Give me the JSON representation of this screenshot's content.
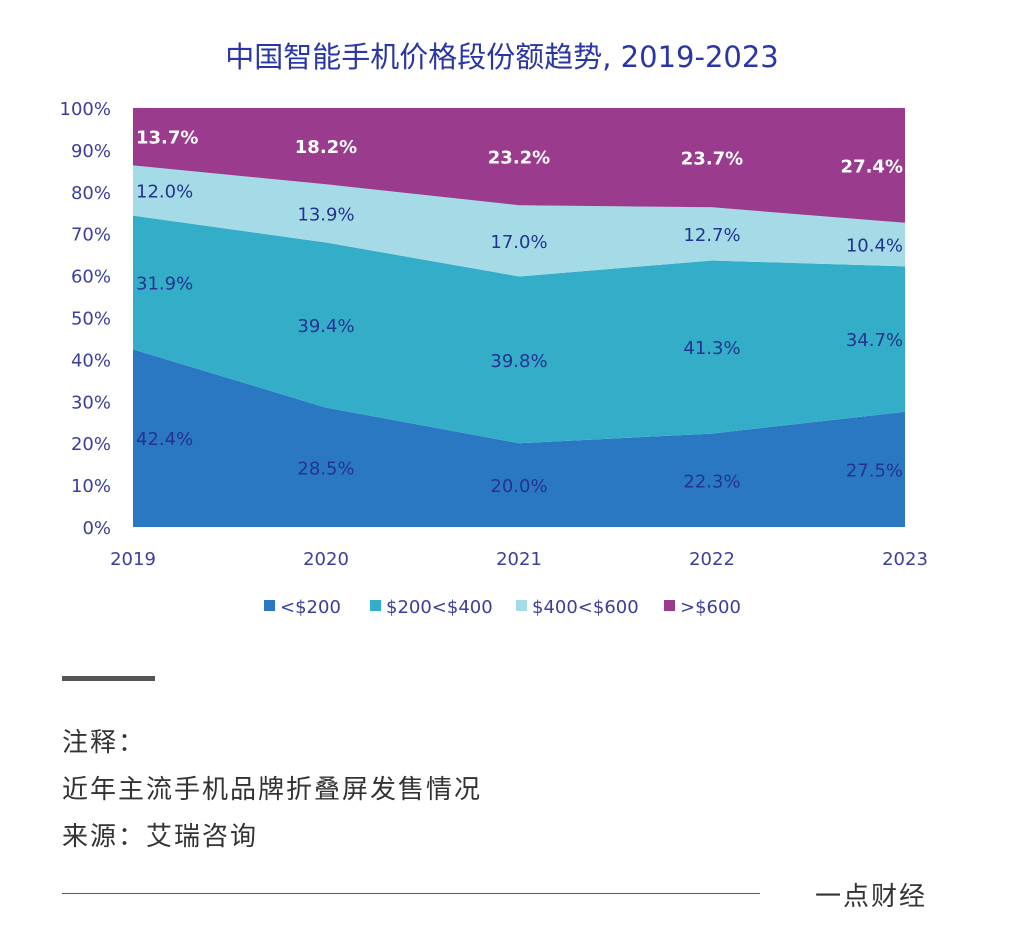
{
  "chart_data": {
    "type": "area",
    "stacked": true,
    "normalized": true,
    "title": "中国智能手机价格段份额趋势, 2019-2023",
    "categories": [
      "2019",
      "2020",
      "2021",
      "2022",
      "2023"
    ],
    "yticks": [
      "0%",
      "10%",
      "20%",
      "30%",
      "40%",
      "50%",
      "60%",
      "70%",
      "80%",
      "90%",
      "100%"
    ],
    "ylim": [
      0,
      100
    ],
    "legend_position": "bottom",
    "series": [
      {
        "name": "<$200",
        "color": "#2b78c2",
        "values": [
          42.4,
          28.5,
          20.0,
          22.3,
          27.5
        ],
        "labels": [
          "42.4%",
          "28.5%",
          "20.0%",
          "22.3%",
          "27.5%"
        ]
      },
      {
        "name": "$200<$400",
        "color": "#34aec8",
        "values": [
          31.9,
          39.4,
          39.8,
          41.3,
          34.7
        ],
        "labels": [
          "31.9%",
          "39.4%",
          "39.8%",
          "41.3%",
          "34.7%"
        ]
      },
      {
        "name": "$400<$600",
        "color": "#a4dbe6",
        "values": [
          12.0,
          13.9,
          17.0,
          12.7,
          10.4
        ],
        "labels": [
          "12.0%",
          "13.9%",
          "17.0%",
          "12.7%",
          "10.4%"
        ]
      },
      {
        "name": ">$600",
        "color": "#9b3b8d",
        "values": [
          13.7,
          18.2,
          23.2,
          23.7,
          27.4
        ],
        "labels": [
          "13.7%",
          "18.2%",
          "23.2%",
          "23.7%",
          "27.4%"
        ]
      }
    ]
  },
  "notes": {
    "heading": "注释：",
    "line1": "近年主流手机品牌折叠屏发售情况",
    "source": "来源：艾瑞咨询"
  },
  "brand": "一点财经"
}
